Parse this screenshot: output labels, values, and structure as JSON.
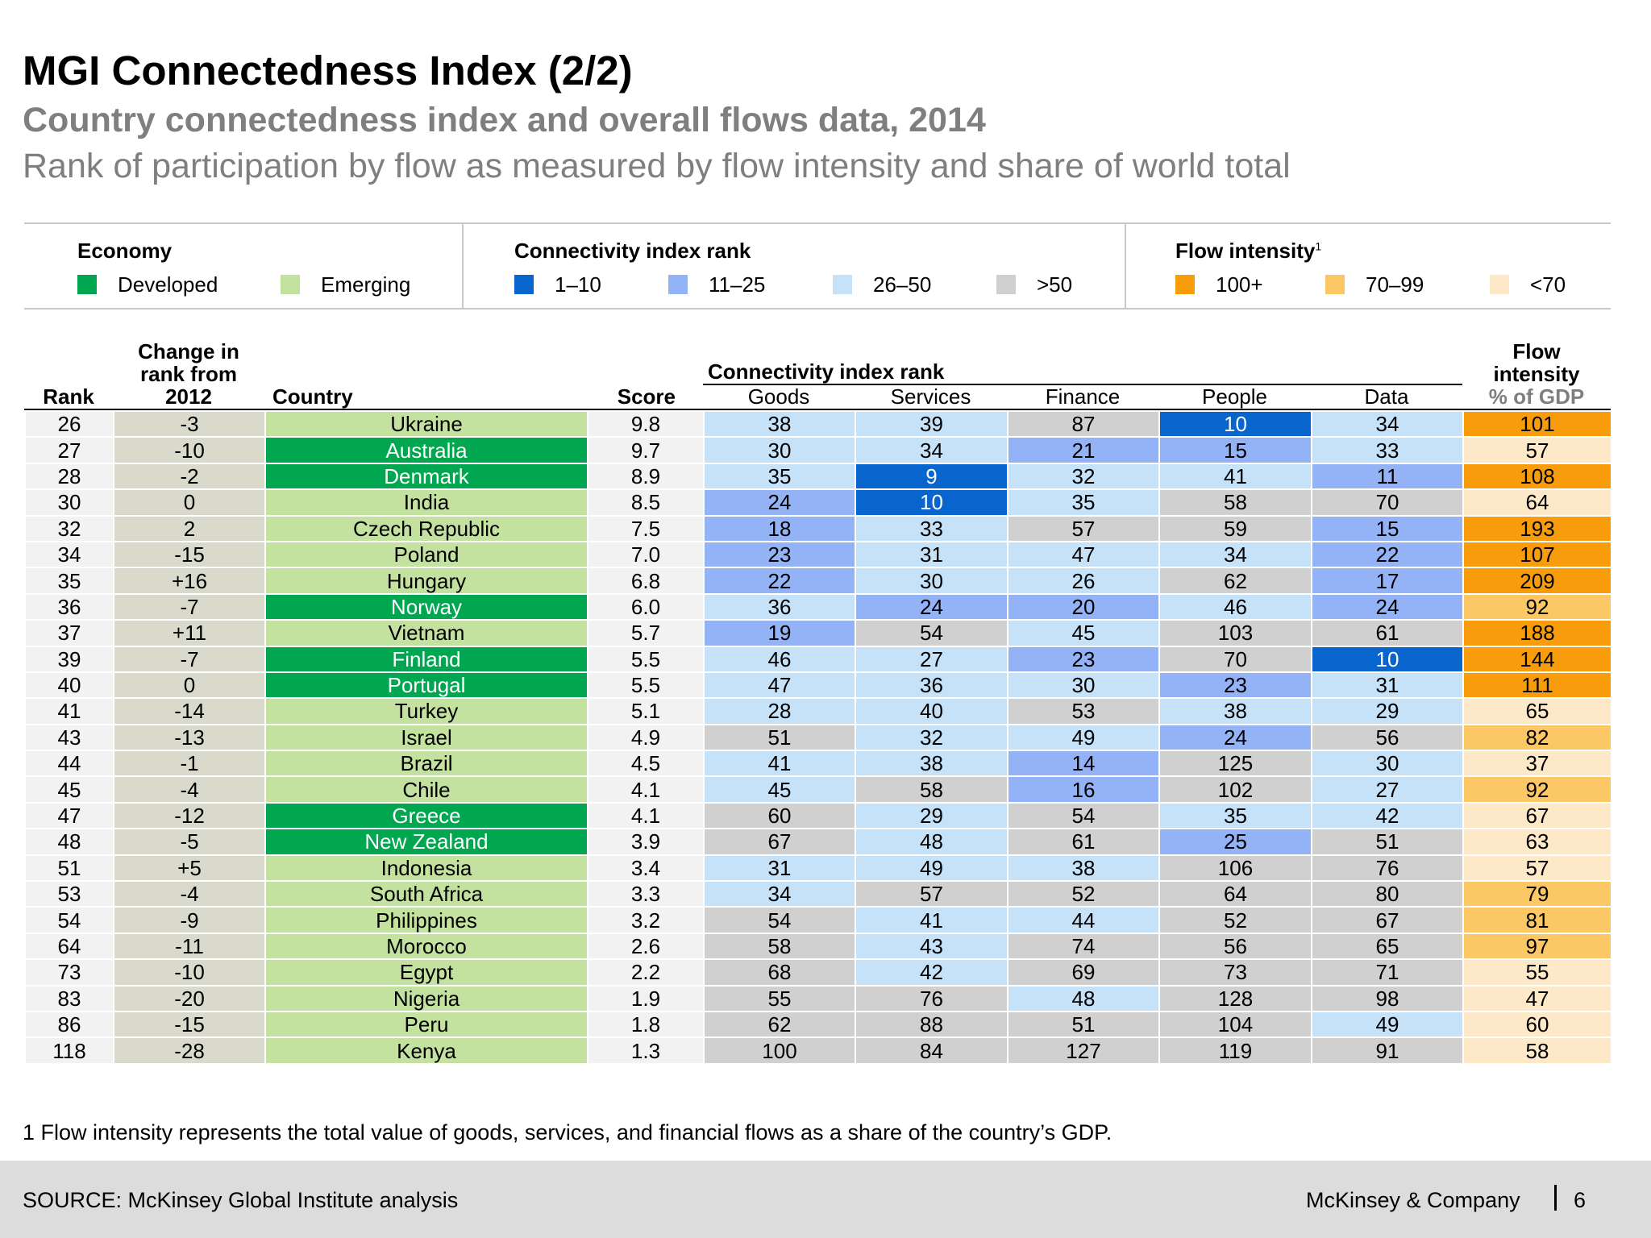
{
  "header": {
    "title": "MGI Connectedness Index (2/2)",
    "subtitle": "Country connectedness index and overall flows data, 2014",
    "subtitle2": "Rank of participation by flow as measured by flow intensity and share of world total"
  },
  "legend": {
    "economy": {
      "title": "Economy",
      "developed": "Developed",
      "emerging": "Emerging"
    },
    "connectivity": {
      "title": "Connectivity index rank",
      "b1": "1–10",
      "b2": "11–25",
      "b3": "26–50",
      "b4": ">50"
    },
    "flow": {
      "title": "Flow intensity",
      "sup": "1",
      "b1": "100+",
      "b2": "70–99",
      "b3": "<70"
    }
  },
  "table_headers": {
    "rank": "Rank",
    "change_l1": "Change in",
    "change_l2": "rank from",
    "change_l3": "2012",
    "country": "Country",
    "score": "Score",
    "connectivity_group": "Connectivity index rank",
    "goods": "Goods",
    "services": "Services",
    "finance": "Finance",
    "people": "People",
    "data": "Data",
    "flow_l1": "Flow",
    "flow_l2": "intensity",
    "flow_l3": "% of GDP"
  },
  "colors": {
    "developed": "#00a650",
    "emerging": "#c3e29f",
    "rank_1_10": "#0865cd",
    "rank_11_25": "#94b3f7",
    "rank_26_50": "#c6e2f9",
    "rank_gt50": "#d0d0d0",
    "flow_100_plus": "#f99c0c",
    "flow_70_99": "#fbc865",
    "flow_lt70": "#fde8c8"
  },
  "rows": [
    {
      "rank": "26",
      "change": "-3",
      "country": "Ukraine",
      "economy": "emerging",
      "score": "9.8",
      "goods": "38",
      "services": "39",
      "finance": "87",
      "people": "10",
      "data": "34",
      "flow": "101"
    },
    {
      "rank": "27",
      "change": "-10",
      "country": "Australia",
      "economy": "developed",
      "score": "9.7",
      "goods": "30",
      "services": "34",
      "finance": "21",
      "people": "15",
      "data": "33",
      "flow": "57"
    },
    {
      "rank": "28",
      "change": "-2",
      "country": "Denmark",
      "economy": "developed",
      "score": "8.9",
      "goods": "35",
      "services": "9",
      "finance": "32",
      "people": "41",
      "data": "11",
      "flow": "108"
    },
    {
      "rank": "30",
      "change": "0",
      "country": "India",
      "economy": "emerging",
      "score": "8.5",
      "goods": "24",
      "services": "10",
      "finance": "35",
      "people": "58",
      "data": "70",
      "flow": "64"
    },
    {
      "rank": "32",
      "change": "2",
      "country": "Czech Republic",
      "economy": "emerging",
      "score": "7.5",
      "goods": "18",
      "services": "33",
      "finance": "57",
      "people": "59",
      "data": "15",
      "flow": "193"
    },
    {
      "rank": "34",
      "change": "-15",
      "country": "Poland",
      "economy": "emerging",
      "score": "7.0",
      "goods": "23",
      "services": "31",
      "finance": "47",
      "people": "34",
      "data": "22",
      "flow": "107"
    },
    {
      "rank": "35",
      "change": "+16",
      "country": "Hungary",
      "economy": "emerging",
      "score": "6.8",
      "goods": "22",
      "services": "30",
      "finance": "26",
      "people": "62",
      "data": "17",
      "flow": "209"
    },
    {
      "rank": "36",
      "change": "-7",
      "country": "Norway",
      "economy": "developed",
      "score": "6.0",
      "goods": "36",
      "services": "24",
      "finance": "20",
      "people": "46",
      "data": "24",
      "flow": "92"
    },
    {
      "rank": "37",
      "change": "+11",
      "country": "Vietnam",
      "economy": "emerging",
      "score": "5.7",
      "goods": "19",
      "services": "54",
      "finance": "45",
      "people": "103",
      "data": "61",
      "flow": "188"
    },
    {
      "rank": "39",
      "change": "-7",
      "country": "Finland",
      "economy": "developed",
      "score": "5.5",
      "goods": "46",
      "services": "27",
      "finance": "23",
      "people": "70",
      "data": "10",
      "flow": "144"
    },
    {
      "rank": "40",
      "change": "0",
      "country": "Portugal",
      "economy": "developed",
      "score": "5.5",
      "goods": "47",
      "services": "36",
      "finance": "30",
      "people": "23",
      "data": "31",
      "flow": "111"
    },
    {
      "rank": "41",
      "change": "-14",
      "country": "Turkey",
      "economy": "emerging",
      "score": "5.1",
      "goods": "28",
      "services": "40",
      "finance": "53",
      "people": "38",
      "data": "29",
      "flow": "65"
    },
    {
      "rank": "43",
      "change": "-13",
      "country": "Israel",
      "economy": "emerging",
      "score": "4.9",
      "goods": "51",
      "services": "32",
      "finance": "49",
      "people": "24",
      "data": "56",
      "flow": "82"
    },
    {
      "rank": "44",
      "change": "-1",
      "country": "Brazil",
      "economy": "emerging",
      "score": "4.5",
      "goods": "41",
      "services": "38",
      "finance": "14",
      "people": "125",
      "data": "30",
      "flow": "37"
    },
    {
      "rank": "45",
      "change": "-4",
      "country": "Chile",
      "economy": "emerging",
      "score": "4.1",
      "goods": "45",
      "services": "58",
      "finance": "16",
      "people": "102",
      "data": "27",
      "flow": "92"
    },
    {
      "rank": "47",
      "change": "-12",
      "country": "Greece",
      "economy": "developed",
      "score": "4.1",
      "goods": "60",
      "services": "29",
      "finance": "54",
      "people": "35",
      "data": "42",
      "flow": "67"
    },
    {
      "rank": "48",
      "change": "-5",
      "country": "New Zealand",
      "economy": "developed",
      "score": "3.9",
      "goods": "67",
      "services": "48",
      "finance": "61",
      "people": "25",
      "data": "51",
      "flow": "63"
    },
    {
      "rank": "51",
      "change": "+5",
      "country": "Indonesia",
      "economy": "emerging",
      "score": "3.4",
      "goods": "31",
      "services": "49",
      "finance": "38",
      "people": "106",
      "data": "76",
      "flow": "57"
    },
    {
      "rank": "53",
      "change": "-4",
      "country": "South Africa",
      "economy": "emerging",
      "score": "3.3",
      "goods": "34",
      "services": "57",
      "finance": "52",
      "people": "64",
      "data": "80",
      "flow": "79"
    },
    {
      "rank": "54",
      "change": "-9",
      "country": "Philippines",
      "economy": "emerging",
      "score": "3.2",
      "goods": "54",
      "services": "41",
      "finance": "44",
      "people": "52",
      "data": "67",
      "flow": "81"
    },
    {
      "rank": "64",
      "change": "-11",
      "country": "Morocco",
      "economy": "emerging",
      "score": "2.6",
      "goods": "58",
      "services": "43",
      "finance": "74",
      "people": "56",
      "data": "65",
      "flow": "97"
    },
    {
      "rank": "73",
      "change": "-10",
      "country": "Egypt",
      "economy": "emerging",
      "score": "2.2",
      "goods": "68",
      "services": "42",
      "finance": "69",
      "people": "73",
      "data": "71",
      "flow": "55"
    },
    {
      "rank": "83",
      "change": "-20",
      "country": "Nigeria",
      "economy": "emerging",
      "score": "1.9",
      "goods": "55",
      "services": "76",
      "finance": "48",
      "people": "128",
      "data": "98",
      "flow": "47"
    },
    {
      "rank": "86",
      "change": "-15",
      "country": "Peru",
      "economy": "emerging",
      "score": "1.8",
      "goods": "62",
      "services": "88",
      "finance": "51",
      "people": "104",
      "data": "49",
      "flow": "60"
    },
    {
      "rank": "118",
      "change": "-28",
      "country": "Kenya",
      "economy": "emerging",
      "score": "1.3",
      "goods": "100",
      "services": "84",
      "finance": "127",
      "people": "119",
      "data": "91",
      "flow": "58"
    }
  ],
  "footnote": "1 Flow intensity represents the total value of goods, services, and financial flows as a share of the country’s GDP.",
  "footer": {
    "source": "SOURCE: McKinsey Global Institute analysis",
    "brand": "McKinsey & Company",
    "page": "6"
  }
}
